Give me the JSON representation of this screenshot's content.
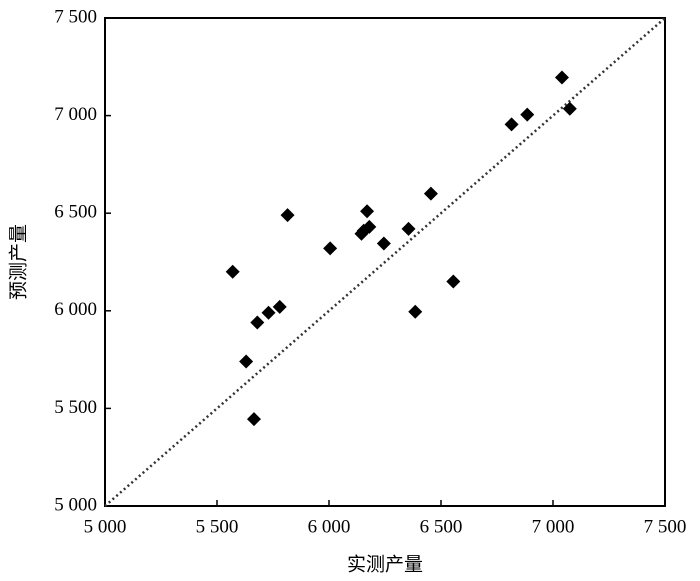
{
  "chart_data": {
    "type": "scatter",
    "xlabel": "实测产量",
    "ylabel": "预测产量",
    "marker": "diamond",
    "color": "#000000",
    "diagonal": true,
    "x": [
      5570,
      5630,
      5665,
      5680,
      5730,
      5780,
      5815,
      6005,
      6155,
      6145,
      6180,
      6170,
      6245,
      6355,
      6385,
      6455,
      6555,
      6815,
      6885,
      7040,
      7075
    ],
    "values": [
      6200,
      5740,
      5445,
      5940,
      5990,
      6020,
      6490,
      6320,
      6410,
      6395,
      6430,
      6510,
      6345,
      6420,
      5995,
      6600,
      6150,
      6955,
      7005,
      7195,
      7035
    ],
    "xlim": [
      5000,
      7500
    ],
    "ylim": [
      5000,
      7500
    ],
    "xticks": [
      {
        "value": 5000,
        "label": "5 000"
      },
      {
        "value": 5500,
        "label": "5 500"
      },
      {
        "value": 6000,
        "label": "6 000"
      },
      {
        "value": 6500,
        "label": "6 500"
      },
      {
        "value": 7000,
        "label": "7 000"
      },
      {
        "value": 7500,
        "label": "7 500"
      }
    ],
    "yticks": [
      {
        "value": 5000,
        "label": "5 000"
      },
      {
        "value": 5500,
        "label": "5 500"
      },
      {
        "value": 6000,
        "label": "6 000"
      },
      {
        "value": 6500,
        "label": "6 500"
      },
      {
        "value": 7000,
        "label": "7 000"
      },
      {
        "value": 7500,
        "label": "7 500"
      }
    ]
  }
}
